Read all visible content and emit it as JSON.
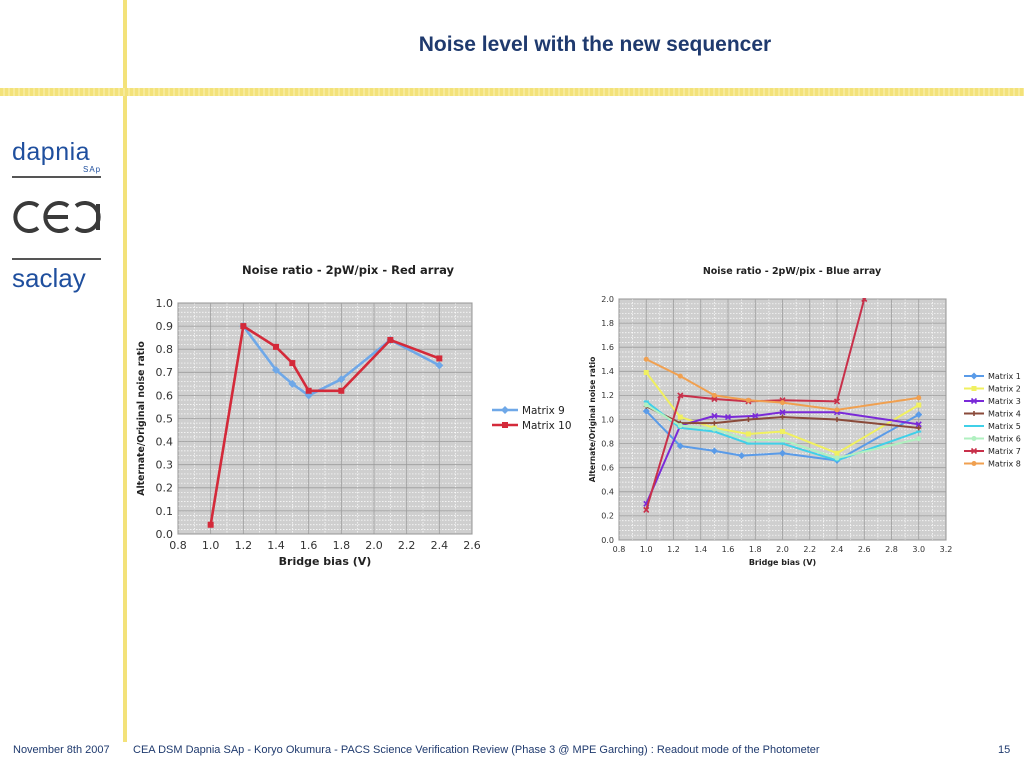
{
  "slide": {
    "title": "Noise level with the new sequencer",
    "footer": {
      "date": "November 8th 2007",
      "text": "CEA DSM Dapnia SAp   - Koryo Okumura -   PACS Science Verification Review (Phase 3 @ MPE Garching) : Readout mode of the Photometer",
      "page": "15"
    },
    "logos": {
      "dapnia": "dapnia",
      "sap": "SAp",
      "cea": "cea",
      "saclay": "saclay"
    },
    "colors": {
      "accent_line": "#f3e27a",
      "title": "#1f3a6e",
      "logo": "#1f4f9e"
    }
  },
  "chart_data": [
    {
      "type": "line",
      "title": "Noise ratio - 2pW/pix - Red array",
      "xlabel": "Bridge bias (V)",
      "ylabel": "Alternate/Original noise ratio",
      "xlim": [
        0.8,
        2.6
      ],
      "ylim": [
        0.0,
        1.0
      ],
      "xticks": [
        "0.8",
        "1.0",
        "1.2",
        "1.4",
        "1.6",
        "1.8",
        "2.0",
        "2.2",
        "2.4",
        "2.6"
      ],
      "yticks": [
        "0.0",
        "0.1",
        "0.2",
        "0.3",
        "0.4",
        "0.5",
        "0.6",
        "0.7",
        "0.8",
        "0.9",
        "1.0"
      ],
      "grid": true,
      "legend": "right",
      "series": [
        {
          "name": "Matrix 9",
          "color": "#6fa8e8",
          "marker": "diamond",
          "x": [
            1.2,
            1.4,
            1.5,
            1.6,
            1.8,
            2.1,
            2.4
          ],
          "y": [
            0.9,
            0.71,
            0.65,
            0.6,
            0.67,
            0.84,
            0.73
          ]
        },
        {
          "name": "Matrix 10",
          "color": "#d42a3a",
          "marker": "square",
          "x": [
            1.0,
            1.2,
            1.4,
            1.5,
            1.6,
            1.8,
            2.1,
            2.4
          ],
          "y": [
            0.04,
            0.9,
            0.81,
            0.74,
            0.62,
            0.62,
            0.84,
            0.76
          ]
        }
      ]
    },
    {
      "type": "line",
      "title": "Noise ratio - 2pW/pix - Blue array",
      "xlabel": "Bridge bias (V)",
      "ylabel": "Alternate/Original noise ratio",
      "xlim": [
        0.8,
        3.2
      ],
      "ylim": [
        0.0,
        2.0
      ],
      "xticks": [
        "0.8",
        "1.0",
        "1.2",
        "1.4",
        "1.6",
        "1.8",
        "2.0",
        "2.2",
        "2.4",
        "2.6",
        "2.8",
        "3.0",
        "3.2"
      ],
      "yticks": [
        "0.0",
        "0.2",
        "0.4",
        "0.6",
        "0.8",
        "1.0",
        "1.2",
        "1.4",
        "1.6",
        "1.8",
        "2.0"
      ],
      "grid": true,
      "legend": "right",
      "series": [
        {
          "name": "Matrix 1",
          "color": "#5a9be8",
          "marker": "diamond",
          "x": [
            1.0,
            1.25,
            1.5,
            1.7,
            2.0,
            2.4,
            3.0
          ],
          "y": [
            1.07,
            0.78,
            0.74,
            0.7,
            0.72,
            0.66,
            1.04
          ]
        },
        {
          "name": "Matrix 2",
          "color": "#f0f060",
          "marker": "square",
          "x": [
            1.0,
            1.25,
            1.5,
            1.75,
            2.0,
            2.4,
            3.0
          ],
          "y": [
            1.39,
            1.02,
            0.93,
            0.88,
            0.9,
            0.72,
            1.12
          ]
        },
        {
          "name": "Matrix 3",
          "color": "#7a2ad8",
          "marker": "x",
          "x": [
            1.0,
            1.25,
            1.5,
            1.6,
            1.8,
            2.0,
            2.4,
            3.0
          ],
          "y": [
            0.3,
            0.95,
            1.03,
            1.02,
            1.03,
            1.06,
            1.06,
            0.96
          ]
        },
        {
          "name": "Matrix 4",
          "color": "#8a4a3a",
          "marker": "plus",
          "x": [
            1.0,
            1.25,
            1.5,
            1.75,
            2.0,
            2.4,
            3.0
          ],
          "y": [
            1.11,
            0.97,
            0.97,
            1.0,
            1.02,
            1.0,
            0.93
          ]
        },
        {
          "name": "Matrix 5",
          "color": "#40d0e8",
          "marker": "dash",
          "x": [
            1.0,
            1.25,
            1.5,
            1.75,
            2.0,
            2.4,
            3.0
          ],
          "y": [
            1.15,
            0.93,
            0.9,
            0.8,
            0.8,
            0.66,
            0.9
          ]
        },
        {
          "name": "Matrix 6",
          "color": "#b0f0c0",
          "marker": "circle",
          "x": [
            1.0,
            1.25,
            1.5,
            1.75,
            2.0,
            2.4,
            3.0
          ],
          "y": [
            1.12,
            0.95,
            0.92,
            0.83,
            0.83,
            0.68,
            0.84
          ]
        },
        {
          "name": "Matrix 7",
          "color": "#c8304a",
          "marker": "x",
          "x": [
            1.0,
            1.25,
            1.5,
            1.75,
            2.0,
            2.4,
            2.6
          ],
          "y": [
            0.25,
            1.2,
            1.17,
            1.15,
            1.16,
            1.15,
            2.0
          ]
        },
        {
          "name": "Matrix 8",
          "color": "#f0a050",
          "marker": "circle",
          "x": [
            1.0,
            1.25,
            1.5,
            1.75,
            2.0,
            2.4,
            3.0
          ],
          "y": [
            1.5,
            1.36,
            1.2,
            1.16,
            1.14,
            1.08,
            1.18
          ]
        }
      ]
    }
  ]
}
